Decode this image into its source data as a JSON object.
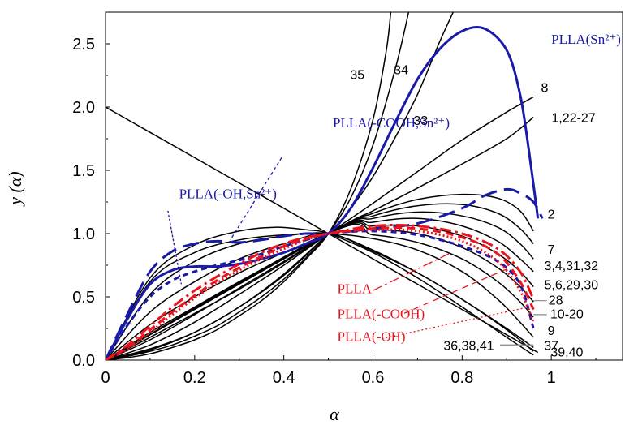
{
  "chart_data": {
    "type": "line",
    "xlabel": "α",
    "ylabel": "y (α)",
    "xlim": [
      0,
      1.16
    ],
    "ylim": [
      0,
      2.75
    ],
    "xticks": [
      {
        "v": 0,
        "label": "0"
      },
      {
        "v": 0.2,
        "label": "0.2"
      },
      {
        "v": 0.4,
        "label": "0.4"
      },
      {
        "v": 0.6,
        "label": "0.6"
      },
      {
        "v": 0.8,
        "label": "0.8"
      },
      {
        "v": 1.0,
        "label": "1"
      }
    ],
    "yticks": [
      {
        "v": 0,
        "label": "0.0"
      },
      {
        "v": 0.5,
        "label": "0.5"
      },
      {
        "v": 1.0,
        "label": "1.0"
      },
      {
        "v": 1.5,
        "label": "1.5"
      },
      {
        "v": 2.0,
        "label": "2.0"
      },
      {
        "v": 2.5,
        "label": "2.5"
      }
    ],
    "colors": {
      "model": "#000000",
      "tin": "#1a1aa8",
      "red": "#e8141e"
    },
    "model_curves": [
      {
        "id": "35",
        "x": [
          0,
          0.05,
          0.1,
          0.15,
          0.2,
          0.25,
          0.3,
          0.35,
          0.4,
          0.45,
          0.5,
          0.55,
          0.6,
          0.63,
          0.64
        ],
        "y": [
          0,
          0.02,
          0.05,
          0.1,
          0.16,
          0.24,
          0.35,
          0.47,
          0.62,
          0.8,
          1.0,
          1.35,
          1.9,
          2.45,
          2.75
        ]
      },
      {
        "id": "34",
        "x": [
          0,
          0.05,
          0.1,
          0.15,
          0.2,
          0.25,
          0.3,
          0.35,
          0.4,
          0.45,
          0.5,
          0.55,
          0.6,
          0.65,
          0.68
        ],
        "y": [
          0,
          0.03,
          0.07,
          0.12,
          0.19,
          0.27,
          0.38,
          0.5,
          0.64,
          0.81,
          1.0,
          1.28,
          1.7,
          2.3,
          2.75
        ]
      },
      {
        "id": "33",
        "x": [
          0,
          0.1,
          0.2,
          0.3,
          0.4,
          0.5,
          0.55,
          0.6,
          0.65,
          0.7,
          0.75,
          0.78
        ],
        "y": [
          0,
          0.09,
          0.22,
          0.42,
          0.67,
          1.0,
          1.2,
          1.45,
          1.76,
          2.1,
          2.52,
          2.75
        ]
      },
      {
        "id": "8",
        "x": [
          0,
          0.1,
          0.2,
          0.3,
          0.4,
          0.5,
          0.6,
          0.7,
          0.8,
          0.9,
          0.96
        ],
        "y": [
          0,
          0.18,
          0.37,
          0.56,
          0.77,
          1.0,
          1.24,
          1.49,
          1.74,
          1.96,
          2.08
        ]
      },
      {
        "id": "1,22-27",
        "x": [
          0,
          0.5,
          0.6,
          0.7,
          0.8,
          0.9,
          0.96
        ],
        "y": [
          0,
          1.0,
          1.18,
          1.36,
          1.55,
          1.75,
          1.92
        ]
      },
      {
        "id": "2",
        "x": [
          0,
          0.1,
          0.2,
          0.3,
          0.4,
          0.5,
          0.6,
          0.7,
          0.8,
          0.9,
          0.95,
          0.97
        ],
        "y": [
          2.0,
          1.8,
          1.6,
          1.4,
          1.2,
          1.0,
          0.8,
          0.6,
          0.4,
          0.2,
          0.1,
          0.06
        ]
      },
      {
        "id": "hi-1",
        "x": [
          0,
          0.5,
          0.6,
          0.7,
          0.8,
          0.88,
          0.93,
          0.96
        ],
        "y": [
          0,
          1.0,
          1.16,
          1.27,
          1.31,
          1.28,
          1.18,
          1.02
        ]
      },
      {
        "id": "hi-2",
        "x": [
          0,
          0.5,
          0.6,
          0.7,
          0.8,
          0.88,
          0.93,
          0.96
        ],
        "y": [
          0,
          1.0,
          1.14,
          1.22,
          1.23,
          1.16,
          1.04,
          0.92
        ]
      },
      {
        "id": "7",
        "x": [
          0,
          0.5,
          0.6,
          0.7,
          0.8,
          0.88,
          0.93,
          0.96
        ],
        "y": [
          0,
          1.0,
          1.12,
          1.17,
          1.14,
          1.05,
          0.92,
          0.8
        ]
      },
      {
        "id": "3,4,31,32",
        "x": [
          0,
          0.5,
          0.6,
          0.7,
          0.8,
          0.88,
          0.93,
          0.96
        ],
        "y": [
          0,
          1.0,
          1.09,
          1.12,
          1.06,
          0.94,
          0.8,
          0.7
        ]
      },
      {
        "id": "5,6,29,30",
        "x": [
          0,
          0.5,
          0.6,
          0.7,
          0.8,
          0.88,
          0.93,
          0.96
        ],
        "y": [
          0,
          1.0,
          1.06,
          1.06,
          0.98,
          0.84,
          0.7,
          0.58
        ]
      },
      {
        "id": "28",
        "x": [
          0,
          0.5,
          0.6,
          0.7,
          0.8,
          0.88,
          0.93,
          0.96
        ],
        "y": [
          0,
          1.0,
          1.03,
          1.0,
          0.89,
          0.73,
          0.58,
          0.46
        ]
      },
      {
        "id": "10-20",
        "x": [
          0,
          0.5,
          0.6,
          0.7,
          0.8,
          0.88,
          0.93,
          0.96
        ],
        "y": [
          0,
          1.0,
          0.99,
          0.93,
          0.8,
          0.62,
          0.46,
          0.34
        ]
      },
      {
        "id": "9",
        "x": [
          0,
          0.1,
          0.2,
          0.3,
          0.4,
          0.5,
          0.6,
          0.7,
          0.8,
          0.88,
          0.93,
          0.96
        ],
        "y": [
          0,
          0.62,
          0.85,
          0.95,
          0.99,
          1.0,
          0.96,
          0.87,
          0.7,
          0.48,
          0.3,
          0.18
        ]
      },
      {
        "id": "37",
        "x": [
          0,
          0.1,
          0.2,
          0.3,
          0.38,
          0.45,
          0.5,
          0.6,
          0.7,
          0.8,
          0.9,
          0.96
        ],
        "y": [
          0,
          0.65,
          0.91,
          1.02,
          1.05,
          1.03,
          1.0,
          0.85,
          0.65,
          0.42,
          0.18,
          0.04
        ]
      },
      {
        "id": "39,40",
        "x": [
          0,
          0.1,
          0.2,
          0.3,
          0.4,
          0.5,
          0.6,
          0.7,
          0.8,
          0.9,
          0.96
        ],
        "y": [
          0,
          0.52,
          0.78,
          0.92,
          0.98,
          1.0,
          0.87,
          0.69,
          0.48,
          0.24,
          0.07
        ]
      },
      {
        "id": "36,38,41",
        "x": [
          0,
          0.1,
          0.2,
          0.3,
          0.4,
          0.5,
          0.6,
          0.7,
          0.8,
          0.9,
          0.96
        ],
        "y": [
          0,
          0.38,
          0.62,
          0.8,
          0.92,
          1.0,
          0.86,
          0.69,
          0.48,
          0.25,
          0.1
        ]
      },
      {
        "id": "lo-1",
        "x": [
          0,
          0.1,
          0.2,
          0.3,
          0.4,
          0.5
        ],
        "y": [
          0,
          0.12,
          0.3,
          0.52,
          0.75,
          1.0
        ]
      },
      {
        "id": "lo-2",
        "x": [
          0,
          0.1,
          0.2,
          0.3,
          0.4,
          0.5
        ],
        "y": [
          0,
          0.08,
          0.22,
          0.42,
          0.68,
          1.0
        ]
      },
      {
        "id": "lo-3",
        "x": [
          0,
          0.1,
          0.2,
          0.3,
          0.4,
          0.5
        ],
        "y": [
          0,
          0.22,
          0.42,
          0.62,
          0.81,
          1.0
        ]
      },
      {
        "id": "lo-4",
        "x": [
          0,
          0.1,
          0.2,
          0.3,
          0.4,
          0.5
        ],
        "y": [
          0,
          0.28,
          0.5,
          0.69,
          0.85,
          1.0
        ]
      },
      {
        "id": "lo-5",
        "x": [
          0,
          0.1,
          0.2,
          0.3,
          0.4,
          0.5
        ],
        "y": [
          0,
          0.16,
          0.36,
          0.57,
          0.78,
          1.0
        ]
      }
    ],
    "series": [
      {
        "name": "PLLA(Sn2+)",
        "color": "#1a1aa8",
        "dash": "solid",
        "x": [
          0,
          0.05,
          0.1,
          0.15,
          0.2,
          0.25,
          0.3,
          0.35,
          0.4,
          0.45,
          0.5,
          0.55,
          0.6,
          0.65,
          0.7,
          0.75,
          0.8,
          0.85,
          0.9,
          0.93,
          0.95,
          0.97
        ],
        "y": [
          0,
          0.33,
          0.6,
          0.71,
          0.74,
          0.74,
          0.76,
          0.8,
          0.85,
          0.92,
          1.0,
          1.2,
          1.52,
          1.88,
          2.22,
          2.46,
          2.6,
          2.62,
          2.45,
          2.1,
          1.65,
          1.12
        ]
      },
      {
        "name": "PLLA(-COOH,Sn2+)",
        "color": "#1a1aa8",
        "dash": "long",
        "x": [
          0,
          0.05,
          0.1,
          0.15,
          0.2,
          0.25,
          0.3,
          0.35,
          0.4,
          0.45,
          0.5,
          0.6,
          0.7,
          0.8,
          0.85,
          0.9,
          0.93,
          0.96,
          0.98
        ],
        "y": [
          0,
          0.37,
          0.7,
          0.86,
          0.92,
          0.94,
          0.93,
          0.95,
          0.98,
          1.0,
          1.0,
          1.04,
          1.08,
          1.2,
          1.3,
          1.35,
          1.32,
          1.25,
          1.12
        ]
      },
      {
        "name": "PLLA(-OH,Sn2+)",
        "color": "#1a1aa8",
        "dash": "short",
        "x": [
          0,
          0.05,
          0.1,
          0.15,
          0.2,
          0.25,
          0.3,
          0.35,
          0.4,
          0.45,
          0.5,
          0.6,
          0.7,
          0.8,
          0.88,
          0.93,
          0.96
        ],
        "y": [
          0,
          0.28,
          0.5,
          0.63,
          0.7,
          0.75,
          0.79,
          0.84,
          0.9,
          0.95,
          1.0,
          1.02,
          0.99,
          0.9,
          0.78,
          0.6,
          0.25
        ]
      },
      {
        "name": "PLLA",
        "color": "#e8141e",
        "dash": "dashdot",
        "x": [
          0,
          0.05,
          0.1,
          0.15,
          0.2,
          0.25,
          0.3,
          0.35,
          0.4,
          0.45,
          0.5,
          0.6,
          0.7,
          0.8,
          0.88,
          0.93,
          0.96
        ],
        "y": [
          0,
          0.12,
          0.27,
          0.42,
          0.55,
          0.66,
          0.76,
          0.85,
          0.92,
          0.97,
          1.0,
          1.06,
          1.06,
          1.0,
          0.88,
          0.7,
          0.48
        ]
      },
      {
        "name": "PLLA(-COOH)",
        "color": "#e8141e",
        "dash": "dashed",
        "x": [
          0,
          0.05,
          0.1,
          0.15,
          0.2,
          0.25,
          0.3,
          0.35,
          0.4,
          0.45,
          0.5,
          0.6,
          0.7,
          0.8,
          0.88,
          0.93,
          0.96
        ],
        "y": [
          0,
          0.1,
          0.24,
          0.38,
          0.51,
          0.63,
          0.73,
          0.82,
          0.9,
          0.96,
          1.0,
          1.04,
          1.04,
          0.97,
          0.84,
          0.62,
          0.4
        ]
      },
      {
        "name": "PLLA(-OH)",
        "color": "#e8141e",
        "dash": "dotted",
        "x": [
          0,
          0.05,
          0.1,
          0.15,
          0.2,
          0.25,
          0.3,
          0.35,
          0.4,
          0.45,
          0.5,
          0.6,
          0.7,
          0.8,
          0.88,
          0.93,
          0.96
        ],
        "y": [
          0,
          0.09,
          0.22,
          0.36,
          0.49,
          0.61,
          0.71,
          0.8,
          0.88,
          0.95,
          1.0,
          1.03,
          1.02,
          0.94,
          0.78,
          0.55,
          0.3
        ]
      }
    ],
    "annotations": {
      "labels": [
        {
          "text": "35",
          "x": 0.565,
          "y": 2.22,
          "color": "#000000"
        },
        {
          "text": "34",
          "x": 0.663,
          "y": 2.26,
          "color": "#000000"
        },
        {
          "text": "33",
          "x": 0.707,
          "y": 1.86,
          "color": "#000000"
        },
        {
          "text": "8",
          "x": 0.985,
          "y": 2.12,
          "color": "#000000"
        },
        {
          "text": "1,22-27",
          "x": 1.05,
          "y": 1.88,
          "color": "#000000"
        },
        {
          "text": "2",
          "x": 1.0,
          "y": 1.12,
          "color": "#000000"
        },
        {
          "text": "7",
          "x": 1.0,
          "y": 0.84,
          "color": "#000000"
        },
        {
          "text": "3,4,31,32",
          "x": 1.045,
          "y": 0.71,
          "color": "#000000"
        },
        {
          "text": "5,6,29,30",
          "x": 1.045,
          "y": 0.56,
          "color": "#000000"
        },
        {
          "text": "28",
          "x": 1.01,
          "y": 0.44,
          "color": "#000000"
        },
        {
          "text": "10-20",
          "x": 1.035,
          "y": 0.33,
          "color": "#000000"
        },
        {
          "text": "9",
          "x": 1.0,
          "y": 0.2,
          "color": "#000000"
        },
        {
          "text": "37",
          "x": 1.0,
          "y": 0.08,
          "color": "#000000"
        },
        {
          "text": "39,40",
          "x": 1.035,
          "y": 0.03,
          "color": "#000000"
        },
        {
          "text": "36,38,41",
          "x": 0.815,
          "y": 0.08,
          "color": "#000000"
        }
      ],
      "callouts": [
        {
          "text": "PLLA(Sn²⁺)",
          "x": 1.0,
          "y": 2.5,
          "color": "#1a1aa8"
        },
        {
          "text": "PLLA(-COOH,Sn²⁺)",
          "x": 0.51,
          "y": 1.84,
          "color": "#1a1aa8"
        },
        {
          "text": "PLLA(-OH,Sn²⁺)",
          "x": 0.165,
          "y": 1.28,
          "color": "#1a1aa8"
        },
        {
          "text": "PLLA",
          "x": 0.52,
          "y": 0.53,
          "color": "#e8141e"
        },
        {
          "text": "PLLA(-COOH)",
          "x": 0.52,
          "y": 0.33,
          "color": "#e8141e"
        },
        {
          "text": "PLLA(-OH)",
          "x": 0.52,
          "y": 0.15,
          "color": "#e8141e"
        }
      ]
    }
  }
}
